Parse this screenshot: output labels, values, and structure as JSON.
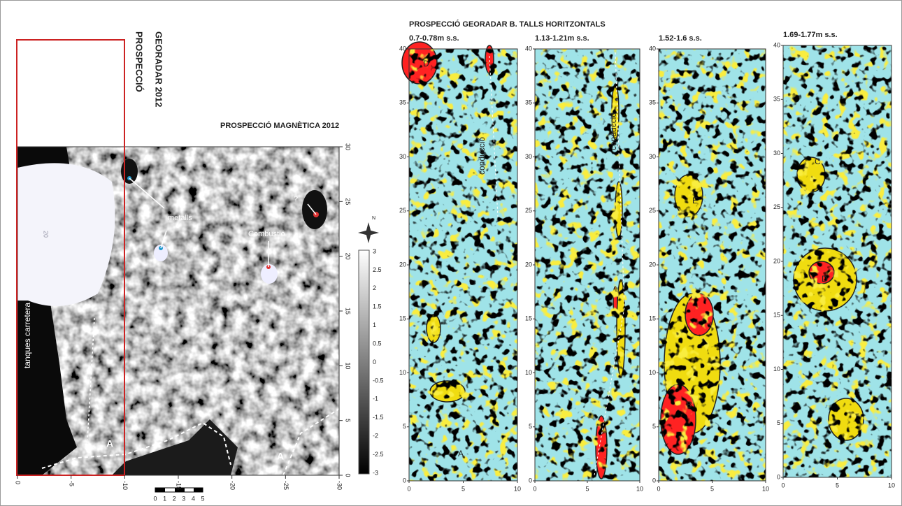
{
  "magnetic_map": {
    "title": "PROSPECCIÓ MAGNÈTICA 2012",
    "gpr_area_label": [
      "PROSPECCIÓ",
      "GEORADAR 2012"
    ],
    "x_ticks": [
      "0",
      "-5",
      "-10",
      "-15",
      "-20",
      "-25",
      "-30"
    ],
    "y_ticks": [
      "0",
      "5",
      "10",
      "15",
      "20",
      "25",
      "30"
    ],
    "colorbar_ticks": [
      "3",
      "2.5",
      "2",
      "1.5",
      "1",
      "0.5",
      "0",
      "-0.5",
      "-1",
      "-1.5",
      "-2",
      "-2.5",
      "-3"
    ],
    "contour_label": "20",
    "north": "N",
    "scale_bar": [
      "0",
      "1",
      "2",
      "3",
      "4",
      "5"
    ],
    "annotations": {
      "metals": "metalls",
      "combustion": "Combustió",
      "unknown": "?",
      "road_fences": "tanques carretera",
      "zone_a_left": "A",
      "zone_a_right": "A"
    }
  },
  "gpr": {
    "title": "PROSPECCIÓ GEORADAR B. TALLS HORITZONTALS",
    "panels": [
      {
        "depth": "0.7-0.78m s.s.",
        "y_ticks": [
          "0",
          "5",
          "10",
          "15",
          "20",
          "25",
          "30",
          "35",
          "40"
        ],
        "x_ticks": [
          "0",
          "5",
          "10"
        ],
        "annotations": [
          "D",
          "conducció",
          "A"
        ]
      },
      {
        "depth": "1.13-1.21m s.s.",
        "y_ticks": [
          "0",
          "5",
          "10",
          "15",
          "20",
          "25",
          "30",
          "35",
          "40"
        ],
        "x_ticks": [
          "0",
          "5",
          "10"
        ],
        "annotations": [
          "conducció"
        ]
      },
      {
        "depth": "1.52-1.6 s.s.",
        "y_ticks": [
          "0",
          "5",
          "10",
          "15",
          "20",
          "25",
          "30",
          "35",
          "40"
        ],
        "x_ticks": [
          "0",
          "5",
          "10"
        ],
        "annotations": [
          "E",
          "B"
        ]
      },
      {
        "depth": "1.69-1.77m s.s.",
        "y_ticks": [
          "0",
          "5",
          "10",
          "15",
          "20",
          "25",
          "30",
          "35",
          "40"
        ],
        "x_ticks": [
          "0",
          "5",
          "10"
        ],
        "annotations": [
          "C",
          "D"
        ]
      }
    ]
  }
}
